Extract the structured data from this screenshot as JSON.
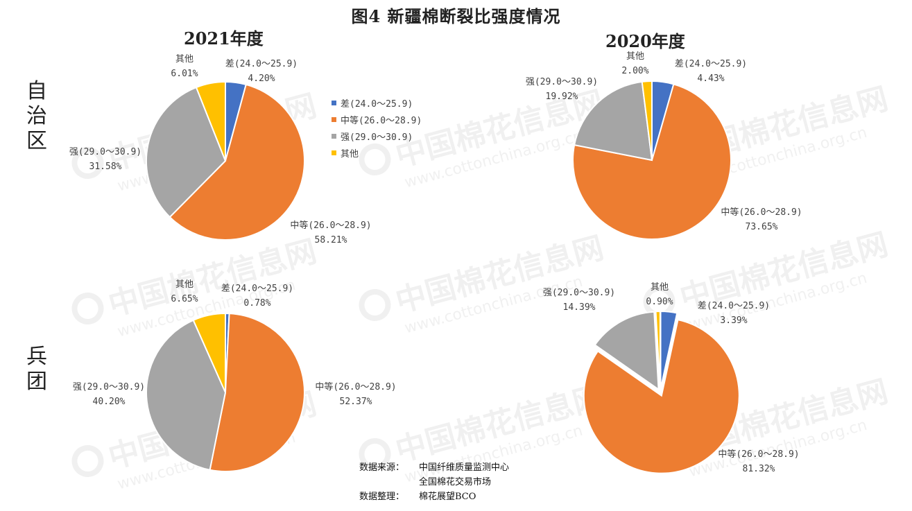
{
  "title": "图4 新疆棉断裂比强度情况",
  "year_labels": {
    "y2021": "2021年度",
    "y2020": "2020年度"
  },
  "row_labels": {
    "region": "自治区",
    "corps": "兵团"
  },
  "colors": {
    "差": "#4472C4",
    "中等": "#ED7D31",
    "强": "#A5A5A5",
    "其他": "#FFC000"
  },
  "legend": [
    {
      "label": "差(24.0～25.9)",
      "color": "#4472C4"
    },
    {
      "label": "中等(26.0～28.9)",
      "color": "#ED7D31"
    },
    {
      "label": "强(29.0～30.9)",
      "color": "#A5A5A5"
    },
    {
      "label": "其他",
      "color": "#FFC000"
    }
  ],
  "chart_data": [
    {
      "type": "pie",
      "id": "region-2021",
      "title": "2021年度",
      "row": "自治区",
      "slices": [
        {
          "category": "差(24.0～25.9)",
          "value": 4.2,
          "label": "4.20%",
          "color": "#4472C4"
        },
        {
          "category": "中等(26.0～28.9)",
          "value": 58.21,
          "label": "58.21%",
          "color": "#ED7D31"
        },
        {
          "category": "强(29.0～30.9)",
          "value": 31.58,
          "label": "31.58%",
          "color": "#A5A5A5"
        },
        {
          "category": "其他",
          "value": 6.01,
          "label": "6.01%",
          "color": "#FFC000"
        }
      ]
    },
    {
      "type": "pie",
      "id": "region-2020",
      "title": "2020年度",
      "row": "自治区",
      "slices": [
        {
          "category": "差(24.0～25.9)",
          "value": 4.43,
          "label": "4.43%",
          "color": "#4472C4"
        },
        {
          "category": "中等(26.0～28.9)",
          "value": 73.65,
          "label": "73.65%",
          "color": "#ED7D31"
        },
        {
          "category": "强(29.0～30.9)",
          "value": 19.92,
          "label": "19.92%",
          "color": "#A5A5A5"
        },
        {
          "category": "其他",
          "value": 2.0,
          "label": "2.00%",
          "color": "#FFC000"
        }
      ]
    },
    {
      "type": "pie",
      "id": "corps-2021",
      "title": "2021年度",
      "row": "兵团",
      "slices": [
        {
          "category": "差(24.0～25.9)",
          "value": 0.78,
          "label": "0.78%",
          "color": "#4472C4"
        },
        {
          "category": "中等(26.0～28.9)",
          "value": 52.37,
          "label": "52.37%",
          "color": "#ED7D31"
        },
        {
          "category": "强(29.0～30.9)",
          "value": 40.2,
          "label": "40.20%",
          "color": "#A5A5A5"
        },
        {
          "category": "其他",
          "value": 6.65,
          "label": "6.65%",
          "color": "#FFC000"
        }
      ]
    },
    {
      "type": "pie",
      "id": "corps-2020",
      "title": "2020年度",
      "row": "兵团",
      "slices": [
        {
          "category": "差(24.0～25.9)",
          "value": 3.39,
          "label": "3.39%",
          "color": "#4472C4"
        },
        {
          "category": "中等(26.0～28.9)",
          "value": 81.32,
          "label": "81.32%",
          "color": "#ED7D31"
        },
        {
          "category": "强(29.0～30.9)",
          "value": 14.39,
          "label": "14.39%",
          "color": "#A5A5A5"
        },
        {
          "category": "其他",
          "value": 0.9,
          "label": "0.90%",
          "color": "#FFC000"
        }
      ]
    }
  ],
  "source": {
    "source_key": "数据来源：",
    "source_line1": "中国纤维质量监测中心",
    "source_line2": "全国棉花交易市场",
    "compiled_key": "数据整理：",
    "compiled_value": "棉花展望BCO"
  },
  "watermark": {
    "cn": "中国棉花信息网",
    "url": "www.cottonchina.org.cn"
  }
}
